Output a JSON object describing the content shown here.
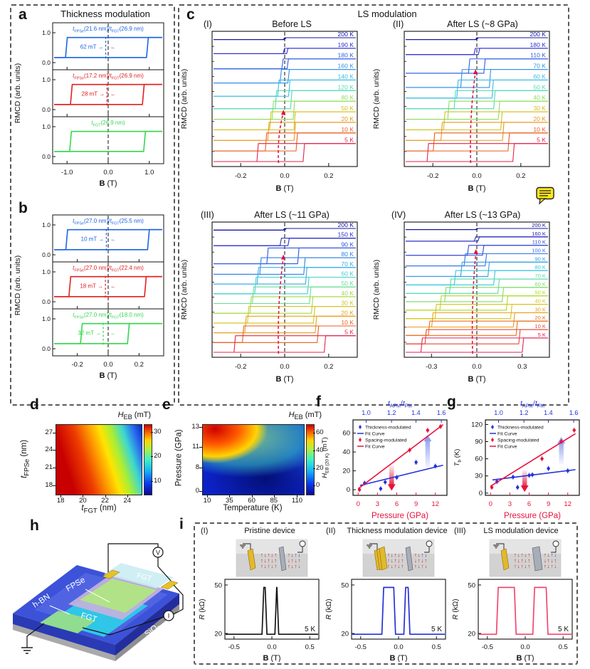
{
  "note_icon": {
    "name": "comment-note"
  },
  "chart_data": {
    "a": {
      "id": "a",
      "type": "line",
      "title": "Thickness modulation",
      "xlabel": "**B** (T)",
      "ylabel": "RMCD (arb. units)",
      "xlim": [
        -1.35,
        1.35
      ],
      "xticks": [
        -1.0,
        0.0,
        1.0
      ],
      "ytick_values": [
        0,
        1
      ],
      "ytick_labels": [
        "0.0",
        "1.0"
      ],
      "subpanels": [
        {
          "label": "*t*_{FPSe}(21.6 nm)/*t*_{FGT}(26.9 nm)",
          "annotation": "62 mT",
          "color": "#1b66e0",
          "xl": -1.02,
          "xr": 0.95,
          "bias": -0.06
        },
        {
          "label": "*t*_{FPSe}(17.2 nm)/*t*_{FGT}(26.9 nm)",
          "annotation": "28 mT",
          "color": "#e32020",
          "xl": -0.9,
          "xr": 0.85,
          "bias": -0.03
        },
        {
          "label": "*t*_{FGT}(26.9 nm)",
          "annotation": "",
          "color": "#35d84e",
          "xl": -0.92,
          "xr": 0.88,
          "bias": null
        }
      ]
    },
    "b": {
      "id": "b",
      "type": "line",
      "title": "",
      "xlabel": "**B** (T)",
      "ylabel": "RMCD (arb. units)",
      "xlim": [
        -0.36,
        0.36
      ],
      "xticks": [
        -0.2,
        0.0,
        0.2
      ],
      "ytick_values": [
        0,
        1
      ],
      "ytick_labels": [
        "0.0",
        "1.0"
      ],
      "subpanels": [
        {
          "label": "*t*_{FPSe}(27.0 nm)/*t*_{FGT}(25.5 nm)",
          "annotation": "10 mT",
          "color": "#1b66e0",
          "xl": -0.27,
          "xr": 0.26,
          "bias": -0.012
        },
        {
          "label": "*t*_{FPSe}(27.0 nm)/*t*_{FGT}(22.4 nm)",
          "annotation": "18 mT",
          "color": "#e32020",
          "xl": -0.25,
          "xr": 0.24,
          "bias": -0.018
        },
        {
          "label": "*t*_{FPSe}(27.0 nm)/*t*_{FGT}(18.0 nm)",
          "annotation": "32 mT",
          "color": "#35d84e",
          "xl": -0.175,
          "xr": 0.13,
          "bias": -0.032
        }
      ]
    },
    "c": {
      "id": "c",
      "type": "line",
      "title": "LS modulation",
      "xlabel": "**B** (T)",
      "ylabel": "RMCD (arb. units)",
      "arrow_color": "#e0103c",
      "subpanels": [
        {
          "num": "(I)",
          "title": "Before LS",
          "xlim": [
            -0.33,
            0.33
          ],
          "xticks": [
            -0.2,
            0.0,
            0.2
          ],
          "arrow_top": 0.58,
          "colors": [
            "#1414a0",
            "#2e2ed2",
            "#2f5ce4",
            "#2f90ea",
            "#39bce2",
            "#52dcb4",
            "#8ede5e",
            "#d2c01e",
            "#e8981c",
            "#ea5e20",
            "#e42448"
          ],
          "curves": [
            {
              "T": "200 K",
              "hw": 0.003,
              "shift": 0,
              "af": 0.1
            },
            {
              "T": "190 K",
              "hw": 0.008,
              "shift": 0.004,
              "af": 0.3
            },
            {
              "T": "180 K",
              "hw": 0.012,
              "shift": 0.002,
              "af": 0.55
            },
            {
              "T": "160 K",
              "hw": 0.018,
              "shift": 0,
              "af": 0.75
            },
            {
              "T": "140 K",
              "hw": 0.025,
              "shift": -0.004,
              "af": 0.9
            },
            {
              "T": "120 K",
              "hw": 0.035,
              "shift": -0.005,
              "af": 1
            },
            {
              "T": "80 K",
              "hw": 0.048,
              "shift": -0.006,
              "af": 1
            },
            {
              "T": "50 K",
              "hw": 0.055,
              "shift": -0.01,
              "af": 1
            },
            {
              "T": "20 K",
              "hw": 0.06,
              "shift": -0.014,
              "af": 1
            },
            {
              "T": "10 K",
              "hw": 0.07,
              "shift": -0.015,
              "af": 1
            },
            {
              "T": "5 K",
              "hw": 0.105,
              "shift": -0.018,
              "af": 1
            }
          ]
        },
        {
          "num": "(II)",
          "title": "After LS (~8 GPa)",
          "xlim": [
            -0.33,
            0.33
          ],
          "xticks": [
            -0.2,
            0.0,
            0.2
          ],
          "arrow_top": 0.28,
          "colors": [
            "#1414a0",
            "#2e2ed2",
            "#2f5ce4",
            "#2f90ea",
            "#39bce2",
            "#52dcb4",
            "#8ede5e",
            "#d2c01e",
            "#e8981c",
            "#ea5e20",
            "#e42448"
          ],
          "curves": [
            {
              "T": "200 K",
              "hw": 0.003,
              "shift": 0,
              "af": 0.1
            },
            {
              "T": "180 K",
              "hw": 0.01,
              "shift": 0,
              "af": 0.35
            },
            {
              "T": "110 K",
              "hw": 0.035,
              "shift": 0,
              "af": 0.8
            },
            {
              "T": "70 K",
              "hw": 0.065,
              "shift": -0.005,
              "af": 1
            },
            {
              "T": "60 K",
              "hw": 0.08,
              "shift": -0.008,
              "af": 1
            },
            {
              "T": "50 K",
              "hw": 0.09,
              "shift": -0.01,
              "af": 1
            },
            {
              "T": "40 K",
              "hw": 0.115,
              "shift": -0.014,
              "af": 1
            },
            {
              "T": "30 K",
              "hw": 0.13,
              "shift": -0.018,
              "af": 1
            },
            {
              "T": "20 K",
              "hw": 0.14,
              "shift": -0.02,
              "af": 1
            },
            {
              "T": "10 K",
              "hw": 0.17,
              "shift": -0.025,
              "af": 1
            },
            {
              "T": "5 K",
              "hw": 0.195,
              "shift": -0.028,
              "af": 1
            }
          ]
        },
        {
          "num": "(III)",
          "title": "After LS (~11 GPa)",
          "xlim": [
            -0.33,
            0.33
          ],
          "xticks": [
            -0.2,
            0.0,
            0.2
          ],
          "arrow_top": 0.24,
          "colors": [
            "#1414a0",
            "#2a2ac8",
            "#2f54e0",
            "#2f82e8",
            "#33abe6",
            "#41d0cc",
            "#68de96",
            "#a2dc40",
            "#d4c41c",
            "#e8a01c",
            "#ea5e20",
            "#e42448"
          ],
          "curves": [
            {
              "T": "200 K",
              "hw": 0.004,
              "shift": 0,
              "af": 0.1
            },
            {
              "T": "150 K",
              "hw": 0.018,
              "shift": 0,
              "af": 0.45
            },
            {
              "T": "90 K",
              "hw": 0.07,
              "shift": -0.008,
              "af": 0.95
            },
            {
              "T": "80 K",
              "hw": 0.1,
              "shift": -0.01,
              "af": 1
            },
            {
              "T": "70 K",
              "hw": 0.11,
              "shift": -0.012,
              "af": 1
            },
            {
              "T": "60 K",
              "hw": 0.12,
              "shift": -0.013,
              "af": 1
            },
            {
              "T": "50 K",
              "hw": 0.13,
              "shift": -0.014,
              "af": 1
            },
            {
              "T": "40 K",
              "hw": 0.14,
              "shift": -0.015,
              "af": 1
            },
            {
              "T": "30 K",
              "hw": 0.15,
              "shift": -0.016,
              "af": 1
            },
            {
              "T": "20 K",
              "hw": 0.16,
              "shift": -0.018,
              "af": 1
            },
            {
              "T": "10 K",
              "hw": 0.17,
              "shift": -0.019,
              "af": 1
            },
            {
              "T": "5 K",
              "hw": 0.205,
              "shift": -0.022,
              "af": 1
            }
          ]
        },
        {
          "num": "(IV)",
          "title": "After LS (~13 GPa)",
          "xlim": [
            -0.48,
            0.48
          ],
          "xticks": [
            -0.3,
            0.0,
            0.3
          ],
          "arrow_top": 0.2,
          "colors": [
            "#1414a0",
            "#2525c0",
            "#2f48d8",
            "#2f72e6",
            "#329ee8",
            "#3ac6dc",
            "#54dab0",
            "#7ede64",
            "#aeda2c",
            "#d8c41a",
            "#e8a01c",
            "#ea701e",
            "#e84834",
            "#e42054"
          ],
          "curves": [
            {
              "T": "200 K",
              "hw": 0.004,
              "shift": 0,
              "af": 0.08
            },
            {
              "T": "160 K",
              "hw": 0.012,
              "shift": 0,
              "af": 0.3
            },
            {
              "T": "110 K",
              "hw": 0.05,
              "shift": -0.008,
              "af": 0.7
            },
            {
              "T": "100 K",
              "hw": 0.07,
              "shift": -0.01,
              "af": 0.85
            },
            {
              "T": "90 K",
              "hw": 0.09,
              "shift": -0.012,
              "af": 1
            },
            {
              "T": "80 K",
              "hw": 0.13,
              "shift": -0.014,
              "af": 1
            },
            {
              "T": "70 K",
              "hw": 0.16,
              "shift": -0.016,
              "af": 1
            },
            {
              "T": "60 K",
              "hw": 0.19,
              "shift": -0.018,
              "af": 1
            },
            {
              "T": "50 K",
              "hw": 0.22,
              "shift": -0.02,
              "af": 1
            },
            {
              "T": "40 K",
              "hw": 0.25,
              "shift": -0.022,
              "af": 1
            },
            {
              "T": "30 K",
              "hw": 0.27,
              "shift": -0.024,
              "af": 1
            },
            {
              "T": "20 K",
              "hw": 0.29,
              "shift": -0.026,
              "af": 1
            },
            {
              "T": "10 K",
              "hw": 0.31,
              "shift": -0.028,
              "af": 1
            },
            {
              "T": "5 K",
              "hw": 0.335,
              "shift": -0.03,
              "af": 1
            }
          ]
        }
      ]
    },
    "d": {
      "id": "d",
      "type": "heatmap",
      "xlabel": "*t*_{FGT} (nm)",
      "ylabel": "*t*_{FPSe} (nm)",
      "xticks": [
        {
          "v": "18",
          "f": 0.06
        },
        {
          "v": "20",
          "f": 0.32
        },
        {
          "v": "22",
          "f": 0.58
        },
        {
          "v": "24",
          "f": 0.84
        }
      ],
      "yticks": [
        {
          "v": "27",
          "f": 0.12
        },
        {
          "v": "24",
          "f": 0.37
        },
        {
          "v": "21",
          "f": 0.62
        },
        {
          "v": "18",
          "f": 0.88
        }
      ],
      "colorbar": {
        "label": "*H*_{EB} (mT)",
        "ticks": [
          {
            "v": "30",
            "f": 0.11
          },
          {
            "v": "20",
            "f": 0.46
          },
          {
            "v": "10",
            "f": 0.82
          }
        ]
      }
    },
    "e": {
      "id": "e",
      "type": "heatmap",
      "xlabel": "Temperature (K)",
      "ylabel": "Pressure (GPa)",
      "xticks": [
        {
          "v": "10",
          "f": 0.05
        },
        {
          "v": "35",
          "f": 0.27
        },
        {
          "v": "60",
          "f": 0.49
        },
        {
          "v": "85",
          "f": 0.71
        },
        {
          "v": "110",
          "f": 0.94
        }
      ],
      "yticks": [
        {
          "v": "13",
          "f": 0.04
        },
        {
          "v": "11",
          "f": 0.33
        },
        {
          "v": "8",
          "f": 0.62
        },
        {
          "v": "0",
          "f": 0.96
        }
      ],
      "colorbar": {
        "label": "*H*_{EB} (mT)",
        "ticks": [
          {
            "v": "60",
            "f": 0.12
          },
          {
            "v": "40",
            "f": 0.38
          },
          {
            "v": "20",
            "f": 0.63
          },
          {
            "v": "0",
            "f": 0.88
          }
        ]
      }
    },
    "f": {
      "id": "f",
      "type": "scatter",
      "top_label": "*t*_{AFM}/*t*_{FM}",
      "top_ticks": [
        {
          "v": "1.0",
          "f": 0.14
        },
        {
          "v": "1.2",
          "f": 0.41
        },
        {
          "v": "1.4",
          "f": 0.67
        },
        {
          "v": "1.6",
          "f": 0.94
        }
      ],
      "xlabel": "Pressure (GPa)",
      "xticks": [
        0,
        3,
        6,
        9,
        12
      ],
      "xlim": [
        -0.8,
        13.8
      ],
      "ylabel": "*H*_{EB (20 K)} (mT)",
      "yticks": [
        0,
        20,
        40,
        60
      ],
      "ylim": [
        -6,
        74
      ],
      "fit_label": "Fit Curve",
      "series": [
        {
          "name": "Thickness-modulated",
          "color": "#2430dd",
          "points": [
            [
              1,
              7
            ],
            [
              3.5,
              1
            ],
            [
              4.2,
              8
            ],
            [
              6,
              13
            ],
            [
              9,
              29
            ],
            [
              12,
              25
            ]
          ],
          "fit": [
            [
              0.3,
              4.5
            ],
            [
              13.2,
              26
            ]
          ]
        },
        {
          "name": "Spacing-modulated",
          "color": "#e8123a",
          "points": [
            [
              0.2,
              0
            ],
            [
              8,
              42
            ],
            [
              10.8,
              63
            ],
            [
              12.8,
              67
            ]
          ],
          "fit": [
            [
              0,
              1
            ],
            [
              13.2,
              69
            ]
          ]
        }
      ],
      "arrows": [
        {
          "x": 5.2,
          "y_from": 26,
          "y_to": 5,
          "color": "#e8123a",
          "dir": "down"
        },
        {
          "x": 10.8,
          "y_from": 22,
          "y_to": 52,
          "color": "#8f9fee",
          "dir": "up"
        }
      ]
    },
    "g": {
      "id": "g",
      "type": "scatter",
      "top_label": "*t*_{AFM}/*t*_{FM}",
      "top_ticks": [
        {
          "v": "1.0",
          "f": 0.14
        },
        {
          "v": "1.2",
          "f": 0.41
        },
        {
          "v": "1.4",
          "f": 0.67
        },
        {
          "v": "1.6",
          "f": 0.94
        }
      ],
      "xlabel": "Pressure (GPa)",
      "xticks": [
        0,
        3,
        6,
        9,
        12
      ],
      "xlim": [
        -0.8,
        13.8
      ],
      "ylabel": "*T*_{b} (K)",
      "yticks": [
        0,
        30,
        60,
        90,
        120
      ],
      "ylim": [
        -4,
        128
      ],
      "fit_label": "Fit Curve",
      "series": [
        {
          "name": "Thickness-modulated",
          "color": "#2430dd",
          "points": [
            [
              1,
              20
            ],
            [
              3.5,
              28
            ],
            [
              4.2,
              10
            ],
            [
              6,
              31
            ],
            [
              6.5,
              32
            ],
            [
              9,
              43
            ],
            [
              12,
              39
            ]
          ],
          "fit": [
            [
              0.3,
              23
            ],
            [
              13.2,
              41
            ]
          ]
        },
        {
          "name": "Spacing-modulated",
          "color": "#e8123a",
          "points": [
            [
              0.2,
              10
            ],
            [
              8,
              60
            ],
            [
              11,
              90
            ],
            [
              13,
              110
            ]
          ],
          "fit": [
            [
              0,
              12
            ],
            [
              13.2,
              104
            ]
          ]
        }
      ],
      "arrows": [
        {
          "x": 5.3,
          "y_from": 40,
          "y_to": 12,
          "color": "#e8123a",
          "dir": "down"
        },
        {
          "x": 11,
          "y_from": 50,
          "y_to": 88,
          "color": "#8f9fee",
          "dir": "up"
        }
      ]
    },
    "h": {
      "id": "h",
      "type": "diagram",
      "labels": {
        "hbn": "h-BN",
        "fpse": "FPSe",
        "fgt_top": "FGT",
        "fgt_bottom": "FGT",
        "sio2": "SiO_{2}",
        "volt": "V",
        "curr": "I"
      }
    },
    "i": {
      "id": "i",
      "type": "line",
      "ylabel": "*R* (kΩ)",
      "xlabel": "**B** (T)",
      "yticks": [
        50,
        20
      ],
      "xticks": [
        -0.5,
        0.0,
        0.5
      ],
      "xlim": [
        -0.62,
        0.62
      ],
      "temp": "5 K",
      "base": 19.5,
      "peak": 48.5,
      "subpanels": [
        {
          "num": "(I)",
          "title": "Pristine device",
          "color": "#151515",
          "peaks": [
            [
              -0.13,
              -0.065
            ],
            [
              0.04,
              0.09
            ]
          ],
          "schematic": {
            "gold": 1,
            "gray_w": 6
          }
        },
        {
          "num": "(II)",
          "title": "Thickness modulation device",
          "color": "#2830d8",
          "peaks": [
            [
              -0.22,
              -0.04
            ],
            [
              0.07,
              0.15
            ]
          ],
          "schematic": {
            "gold": 3,
            "gray_w": 6
          }
        },
        {
          "num": "(III)",
          "title": "LS modulation device",
          "color": "#f2486e",
          "peaks": [
            [
              -0.38,
              -0.12
            ],
            [
              0.1,
              0.3
            ]
          ],
          "schematic": {
            "gold": 1,
            "gray_w": 10
          }
        }
      ]
    }
  }
}
